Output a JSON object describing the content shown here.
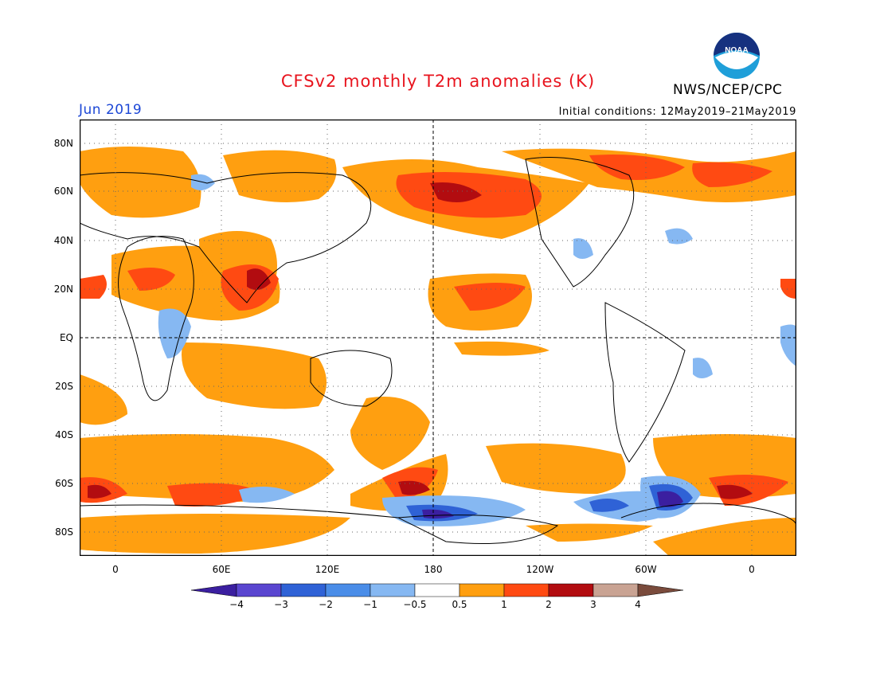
{
  "title": "CFSv2 monthly T2m anomalies (K)",
  "agency": "NWS/NCEP/CPC",
  "logo_text": "NOAA",
  "month": "Jun 2019",
  "initial_conditions": "Initial conditions: 12May2019–21May2019",
  "lat_labels": [
    "80N",
    "60N",
    "40N",
    "20N",
    "EQ",
    "20S",
    "40S",
    "60S",
    "80S"
  ],
  "lon_labels": [
    "0",
    "60E",
    "120E",
    "180",
    "120W",
    "60W",
    "0"
  ],
  "colorbar": {
    "labels": [
      "−4",
      "−3",
      "−2",
      "−1",
      "−0.5",
      "0.5",
      "1",
      "2",
      "3",
      "4"
    ],
    "colors": [
      "#3b1fa0",
      "#5a46d0",
      "#2f62d6",
      "#4a8de8",
      "#86b8f2",
      "#ffffff",
      "#ff9f10",
      "#ff4a12",
      "#b20c10",
      "#c9a393",
      "#7a4b3c"
    ]
  }
}
